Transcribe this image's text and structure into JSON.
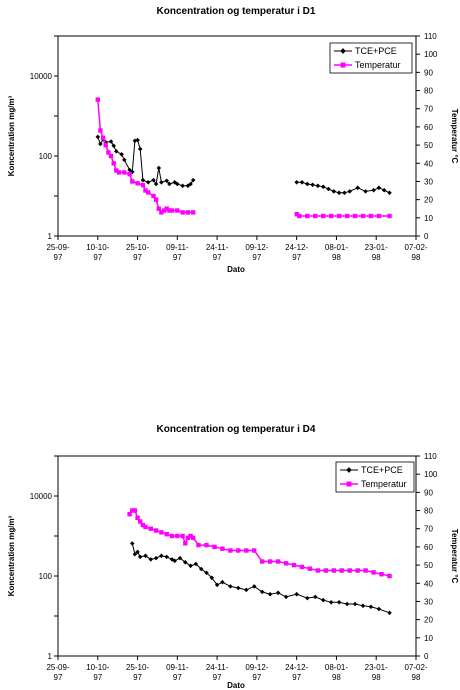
{
  "chart_data": [
    {
      "type": "line",
      "title": "Koncentration og temperatur i D1",
      "xlabel": "Dato",
      "ylabel": "Koncentration mg/m³",
      "y2label": "Temperatur °C",
      "y_scale": "log",
      "ylim": [
        1,
        100000
      ],
      "y_ticks": [
        "1",
        "100",
        "10000"
      ],
      "y2lim": [
        0,
        110
      ],
      "y2_ticks": [
        "0",
        "10",
        "20",
        "30",
        "40",
        "50",
        "60",
        "70",
        "80",
        "90",
        "100",
        "110"
      ],
      "x_ticks": [
        [
          "25-09-",
          "97"
        ],
        [
          "10-10-",
          "97"
        ],
        [
          "25-10-",
          "97"
        ],
        [
          "09-11-",
          "97"
        ],
        [
          "24-11-",
          "97"
        ],
        [
          "09-12-",
          "97"
        ],
        [
          "24-12-",
          "97"
        ],
        [
          "08-01-",
          "98"
        ],
        [
          "23-01-",
          "98"
        ],
        [
          "07-02-",
          "98"
        ]
      ],
      "legend_position": "top-right",
      "series": [
        {
          "name": "TCE+PCE",
          "color": "#000000",
          "marker": "diamond",
          "points": [
            [
              "1997-10-10",
              300
            ],
            [
              "1997-10-11",
              200
            ],
            [
              "1997-10-12",
              260
            ],
            [
              "1997-10-13",
              220
            ],
            [
              "1997-10-15",
              230
            ],
            [
              "1997-10-16",
              180
            ],
            [
              "1997-10-17",
              130
            ],
            [
              "1997-10-19",
              110
            ],
            [
              "1997-10-20",
              80
            ],
            [
              "1997-10-22",
              45
            ],
            [
              "1997-10-23",
              40
            ],
            [
              "1997-10-24",
              240
            ],
            [
              "1997-10-25",
              250
            ],
            [
              "1997-10-26",
              150
            ],
            [
              "1997-10-27",
              25
            ],
            [
              "1997-10-29",
              22
            ],
            [
              "1997-10-31",
              25
            ],
            [
              "1997-11-01",
              20
            ],
            [
              "1997-11-02",
              50
            ],
            [
              "1997-11-03",
              22
            ],
            [
              "1997-11-05",
              24
            ],
            [
              "1997-11-06",
              20
            ],
            [
              "1997-11-08",
              22
            ],
            [
              "1997-11-09",
              20
            ],
            [
              "1997-11-11",
              18
            ],
            [
              "1997-11-13",
              18
            ],
            [
              "1997-11-14",
              20
            ],
            [
              "1997-11-15",
              25
            ],
            [
              "1997-12-24",
              22
            ],
            [
              "1997-12-26",
              22
            ],
            [
              "1997-12-28",
              20
            ],
            [
              "1997-12-30",
              19
            ],
            [
              "1998-01-01",
              18
            ],
            [
              "1998-01-03",
              17
            ],
            [
              "1998-01-05",
              15
            ],
            [
              "1998-01-07",
              13
            ],
            [
              "1998-01-09",
              12
            ],
            [
              "1998-01-11",
              12
            ],
            [
              "1998-01-13",
              13
            ],
            [
              "1998-01-16",
              16
            ],
            [
              "1998-01-19",
              13
            ],
            [
              "1998-01-22",
              14
            ],
            [
              "1998-01-24",
              16
            ],
            [
              "1998-01-26",
              14
            ],
            [
              "1998-01-28",
              12
            ]
          ]
        },
        {
          "name": "Temperatur",
          "color": "#ff00ff",
          "marker": "square",
          "axis": "right",
          "points": [
            [
              "1997-10-10",
              75
            ],
            [
              "1997-10-11",
              58
            ],
            [
              "1997-10-12",
              54
            ],
            [
              "1997-10-13",
              50
            ],
            [
              "1997-10-14",
              46
            ],
            [
              "1997-10-15",
              44
            ],
            [
              "1997-10-16",
              40
            ],
            [
              "1997-10-17",
              36
            ],
            [
              "1997-10-18",
              35
            ],
            [
              "1997-10-20",
              35
            ],
            [
              "1997-10-22",
              34
            ],
            [
              "1997-10-23",
              30
            ],
            [
              "1997-10-25",
              29
            ],
            [
              "1997-10-27",
              28
            ],
            [
              "1997-10-28",
              25
            ],
            [
              "1997-10-29",
              24
            ],
            [
              "1997-10-31",
              22
            ],
            [
              "1997-11-01",
              20
            ],
            [
              "1997-11-02",
              15
            ],
            [
              "1997-11-03",
              13
            ],
            [
              "1997-11-04",
              14
            ],
            [
              "1997-11-05",
              15
            ],
            [
              "1997-11-06",
              14
            ],
            [
              "1997-11-07",
              14
            ],
            [
              "1997-11-09",
              14
            ],
            [
              "1997-11-11",
              13
            ],
            [
              "1997-11-13",
              13
            ],
            [
              "1997-11-15",
              13
            ],
            [
              "1997-12-24",
              12
            ],
            [
              "1997-12-25",
              11
            ],
            [
              "1997-12-28",
              11
            ],
            [
              "1997-12-31",
              11
            ],
            [
              "1998-01-03",
              11
            ],
            [
              "1998-01-06",
              11
            ],
            [
              "1998-01-09",
              11
            ],
            [
              "1998-01-12",
              11
            ],
            [
              "1998-01-15",
              11
            ],
            [
              "1998-01-18",
              11
            ],
            [
              "1998-01-21",
              11
            ],
            [
              "1998-01-24",
              11
            ],
            [
              "1998-01-28",
              11
            ]
          ]
        }
      ]
    },
    {
      "type": "line",
      "title": "Koncentration og temperatur i D4",
      "xlabel": "Dato",
      "ylabel": "Koncentration mg/m³",
      "y2label": "Temperatur °C",
      "y_scale": "log",
      "ylim": [
        1,
        100000
      ],
      "y_ticks": [
        "1",
        "100",
        "10000"
      ],
      "y2lim": [
        0,
        110
      ],
      "y2_ticks": [
        "0",
        "10",
        "20",
        "30",
        "40",
        "50",
        "60",
        "70",
        "80",
        "90",
        "100",
        "110"
      ],
      "x_ticks": [
        [
          "25-09-",
          "97"
        ],
        [
          "10-10-",
          "97"
        ],
        [
          "25-10-",
          "97"
        ],
        [
          "09-11-",
          "97"
        ],
        [
          "24-11-",
          "97"
        ],
        [
          "09-12-",
          "97"
        ],
        [
          "24-12-",
          "97"
        ],
        [
          "08-01-",
          "98"
        ],
        [
          "23-01-",
          "98"
        ],
        [
          "07-02-",
          "98"
        ]
      ],
      "legend_position": "top-right",
      "series": [
        {
          "name": "TCE+PCE",
          "color": "#000000",
          "marker": "diamond",
          "points": [
            [
              "1997-10-23",
              650
            ],
            [
              "1997-10-24",
              350
            ],
            [
              "1997-10-25",
              400
            ],
            [
              "1997-10-26",
              300
            ],
            [
              "1997-10-28",
              320
            ],
            [
              "1997-10-30",
              260
            ],
            [
              "1997-11-01",
              280
            ],
            [
              "1997-11-03",
              320
            ],
            [
              "1997-11-05",
              300
            ],
            [
              "1997-11-07",
              260
            ],
            [
              "1997-11-08",
              240
            ],
            [
              "1997-11-10",
              280
            ],
            [
              "1997-11-12",
              220
            ],
            [
              "1997-11-14",
              180
            ],
            [
              "1997-11-16",
              200
            ],
            [
              "1997-11-18",
              150
            ],
            [
              "1997-11-20",
              120
            ],
            [
              "1997-11-22",
              90
            ],
            [
              "1997-11-24",
              60
            ],
            [
              "1997-11-26",
              70
            ],
            [
              "1997-11-29",
              55
            ],
            [
              "1997-12-02",
              50
            ],
            [
              "1997-12-05",
              45
            ],
            [
              "1997-12-08",
              55
            ],
            [
              "1997-12-11",
              40
            ],
            [
              "1997-12-14",
              35
            ],
            [
              "1997-12-17",
              38
            ],
            [
              "1997-12-20",
              30
            ],
            [
              "1997-12-24",
              35
            ],
            [
              "1997-12-28",
              28
            ],
            [
              "1997-12-31",
              30
            ],
            [
              "1998-01-03",
              25
            ],
            [
              "1998-01-06",
              22
            ],
            [
              "1998-01-09",
              22
            ],
            [
              "1998-01-12",
              20
            ],
            [
              "1998-01-15",
              20
            ],
            [
              "1998-01-18",
              18
            ],
            [
              "1998-01-21",
              17
            ],
            [
              "1998-01-24",
              15
            ],
            [
              "1998-01-28",
              12
            ]
          ]
        },
        {
          "name": "Temperatur",
          "color": "#ff00ff",
          "marker": "square",
          "axis": "right",
          "points": [
            [
              "1997-10-22",
              78
            ],
            [
              "1997-10-23",
              80
            ],
            [
              "1997-10-24",
              80
            ],
            [
              "1997-10-25",
              76
            ],
            [
              "1997-10-26",
              74
            ],
            [
              "1997-10-27",
              72
            ],
            [
              "1997-10-28",
              71
            ],
            [
              "1997-10-30",
              70
            ],
            [
              "1997-11-01",
              69
            ],
            [
              "1997-11-03",
              68
            ],
            [
              "1997-11-05",
              67
            ],
            [
              "1997-11-07",
              66
            ],
            [
              "1997-11-09",
              66
            ],
            [
              "1997-11-11",
              66
            ],
            [
              "1997-11-12",
              62
            ],
            [
              "1997-11-13",
              65
            ],
            [
              "1997-11-14",
              66
            ],
            [
              "1997-11-15",
              65
            ],
            [
              "1997-11-17",
              61
            ],
            [
              "1997-11-20",
              61
            ],
            [
              "1997-11-23",
              60
            ],
            [
              "1997-11-26",
              59
            ],
            [
              "1997-11-29",
              58
            ],
            [
              "1997-12-02",
              58
            ],
            [
              "1997-12-05",
              58
            ],
            [
              "1997-12-08",
              58
            ],
            [
              "1997-12-11",
              52
            ],
            [
              "1997-12-14",
              52
            ],
            [
              "1997-12-17",
              52
            ],
            [
              "1997-12-20",
              51
            ],
            [
              "1997-12-23",
              50
            ],
            [
              "1997-12-26",
              49
            ],
            [
              "1997-12-29",
              48
            ],
            [
              "1998-01-01",
              47
            ],
            [
              "1998-01-04",
              47
            ],
            [
              "1998-01-07",
              47
            ],
            [
              "1998-01-10",
              47
            ],
            [
              "1998-01-13",
              47
            ],
            [
              "1998-01-16",
              47
            ],
            [
              "1998-01-19",
              47
            ],
            [
              "1998-01-22",
              46
            ],
            [
              "1998-01-25",
              45
            ],
            [
              "1998-01-28",
              44
            ]
          ]
        }
      ]
    }
  ]
}
